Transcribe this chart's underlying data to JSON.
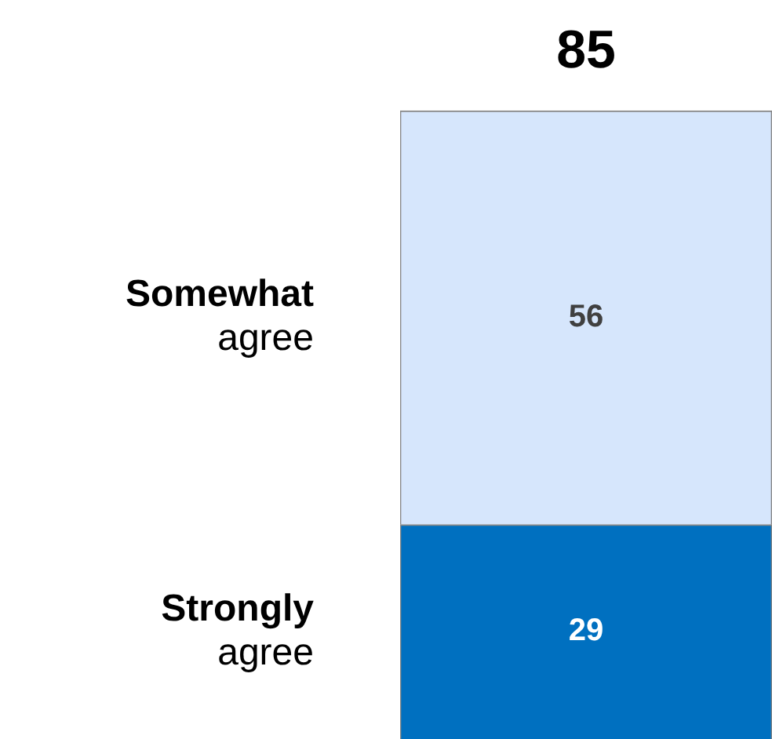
{
  "chart_data": {
    "type": "bar",
    "stacked": true,
    "categories": [
      null
    ],
    "series": [
      {
        "name": "Strongly agree",
        "color": "#0070c0",
        "values": [
          29
        ]
      },
      {
        "name": "Somewhat agree",
        "color": "#d6e6fc",
        "values": [
          56
        ]
      }
    ],
    "data_labels": true,
    "totals": [
      "85"
    ],
    "legend": false
  }
}
